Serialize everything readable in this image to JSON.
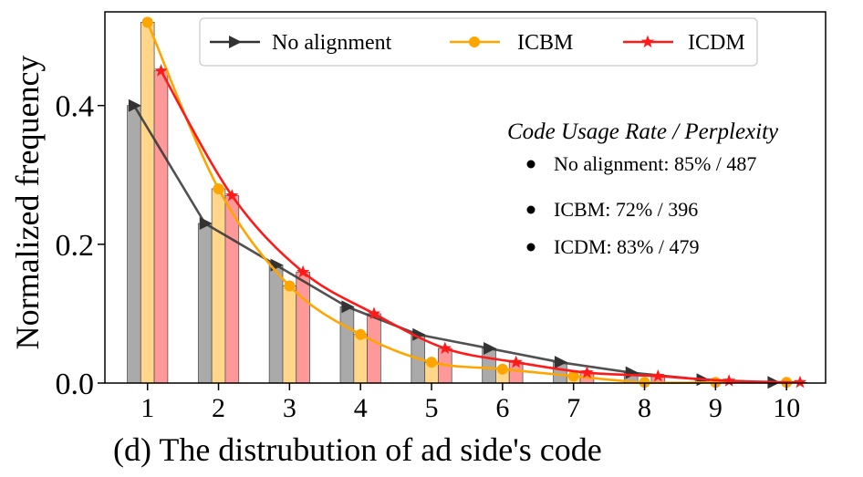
{
  "chart_data": {
    "type": "bar",
    "title": "",
    "xlabel": "",
    "ylabel": "Normalized frequency",
    "caption": "(d) The distrubution of ad side's code",
    "categories": [
      "1",
      "2",
      "3",
      "4",
      "5",
      "6",
      "7",
      "8",
      "9",
      "10"
    ],
    "yticks": [
      0.0,
      0.2,
      0.4
    ],
    "yticklabels": [
      "0.0",
      "0.2",
      "0.4"
    ],
    "ylim": [
      0,
      0.535
    ],
    "xlim": [
      0.4,
      10.55
    ],
    "series": [
      {
        "name": "No alignment",
        "color": "#333333",
        "bar_color": "#aaaaaa",
        "marker": "triangle-right",
        "values": [
          0.4,
          0.23,
          0.17,
          0.11,
          0.07,
          0.05,
          0.03,
          0.015,
          0.005,
          0.001
        ]
      },
      {
        "name": "ICBM",
        "color": "#ffa500",
        "bar_color": "#ffd68a",
        "marker": "circle",
        "values": [
          0.52,
          0.28,
          0.14,
          0.07,
          0.03,
          0.02,
          0.01,
          0.001,
          0.001,
          0.001
        ]
      },
      {
        "name": "ICDM",
        "color": "#ff1a1a",
        "bar_color": "#ff9999",
        "marker": "star",
        "values": [
          0.45,
          0.27,
          0.16,
          0.1,
          0.05,
          0.03,
          0.015,
          0.01,
          0.003,
          0.001
        ]
      }
    ],
    "annotation": {
      "title": "Code Usage Rate / Perplexity",
      "items": [
        "No alignment: 85% / 487",
        "ICBM: 72% / 396",
        "ICDM: 83% / 479"
      ]
    },
    "legend_position": "top"
  }
}
